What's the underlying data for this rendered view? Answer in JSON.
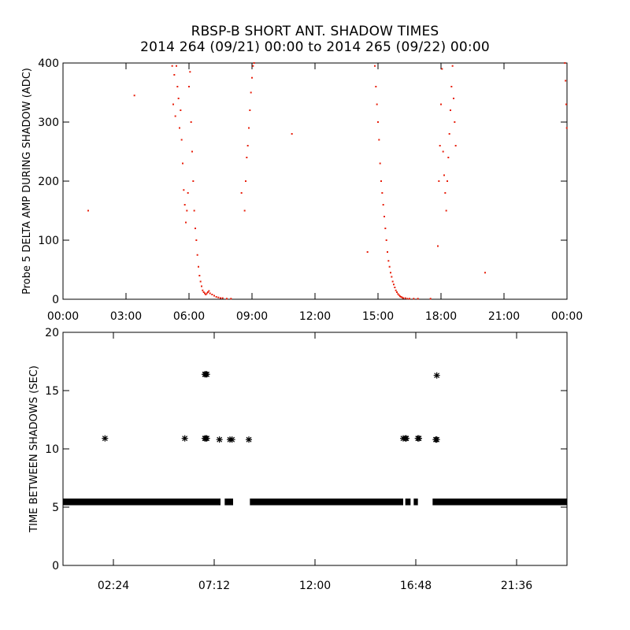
{
  "title": "RBSP-B SHORT ANT. SHADOW TIMES",
  "subtitle": "2014 264 (09/21) 00:00 to 2014 265 (09/22) 00:00",
  "colors": {
    "top_points": "#e8200c",
    "bottom_points": "#000000",
    "axes": "#000000"
  },
  "chart_data": [
    {
      "type": "scatter",
      "ylabel": "Probe 5 DELTA AMP DURING SHADOW (ADC)",
      "xlabel": "",
      "x_unit": "hours",
      "xlim": [
        0,
        24
      ],
      "ylim": [
        0,
        400
      ],
      "xticks": [
        0,
        3,
        6,
        9,
        12,
        15,
        18,
        21,
        24
      ],
      "xtick_labels": [
        "00:00",
        "03:00",
        "06:00",
        "09:00",
        "12:00",
        "15:00",
        "18:00",
        "21:00",
        "00:00"
      ],
      "yticks": [
        0,
        100,
        200,
        300,
        400
      ],
      "ytick_labels": [
        "0",
        "100",
        "200",
        "300",
        "400"
      ],
      "series": [
        {
          "style": "dots",
          "color": "#e8200c",
          "x": [
            1.2,
            3.4,
            5.2,
            5.25,
            5.3,
            5.35,
            5.4,
            5.45,
            5.5,
            5.55,
            5.6,
            5.65,
            5.7,
            5.75,
            5.8,
            5.85,
            5.9,
            5.95,
            6.0,
            6.05,
            6.1,
            6.15,
            6.2,
            6.25,
            6.3,
            6.35,
            6.4,
            6.45,
            6.5,
            6.55,
            6.6,
            6.65,
            6.7,
            6.75,
            6.8,
            6.85,
            6.9,
            6.95,
            7.0,
            7.1,
            7.2,
            7.3,
            7.4,
            7.5,
            7.6,
            7.8,
            8.0,
            8.5,
            8.65,
            8.7,
            8.75,
            8.8,
            8.85,
            8.9,
            8.95,
            9.0,
            9.05,
            9.1,
            10.9,
            14.5,
            14.85,
            14.9,
            14.95,
            15.0,
            15.05,
            15.1,
            15.15,
            15.2,
            15.25,
            15.3,
            15.35,
            15.4,
            15.45,
            15.5,
            15.55,
            15.6,
            15.65,
            15.7,
            15.75,
            15.8,
            15.85,
            15.9,
            15.95,
            16.0,
            16.05,
            16.1,
            16.15,
            16.2,
            16.3,
            16.4,
            16.5,
            16.7,
            16.9,
            17.5,
            17.85,
            17.9,
            17.95,
            18.0,
            18.05,
            18.1,
            18.15,
            18.2,
            18.25,
            18.3,
            18.35,
            18.4,
            18.45,
            18.5,
            18.55,
            18.6,
            18.65,
            18.7,
            20.1,
            23.9,
            23.93,
            23.96,
            23.99
          ],
          "y": [
            150,
            345,
            395,
            330,
            380,
            310,
            395,
            360,
            340,
            290,
            320,
            270,
            230,
            185,
            160,
            130,
            150,
            180,
            360,
            385,
            300,
            250,
            200,
            150,
            120,
            100,
            75,
            55,
            40,
            30,
            22,
            15,
            12,
            10,
            8,
            10,
            12,
            14,
            10,
            8,
            6,
            4,
            3,
            2,
            2,
            1,
            1,
            180,
            150,
            200,
            240,
            260,
            290,
            320,
            350,
            375,
            395,
            400,
            280,
            80,
            395,
            360,
            330,
            300,
            270,
            230,
            200,
            180,
            160,
            140,
            120,
            100,
            80,
            65,
            55,
            45,
            38,
            30,
            25,
            20,
            15,
            12,
            9,
            7,
            5,
            4,
            3,
            2,
            2,
            1,
            1,
            1,
            1,
            1,
            90,
            200,
            260,
            330,
            390,
            250,
            210,
            180,
            150,
            200,
            240,
            280,
            320,
            360,
            395,
            340,
            300,
            260,
            45,
            400,
            370,
            330,
            290
          ]
        }
      ]
    },
    {
      "type": "scatter",
      "ylabel": "TIME BETWEEN SHADOWS (SEC)",
      "xlabel": "",
      "x_unit": "hours",
      "xlim": [
        0,
        24
      ],
      "ylim": [
        0,
        20
      ],
      "xticks": [
        2.4,
        7.2,
        12.0,
        16.8,
        21.6
      ],
      "xtick_labels": [
        "02:24",
        "07:12",
        "12:00",
        "16:48",
        "21:36"
      ],
      "yticks": [
        0,
        5,
        10,
        15,
        20
      ],
      "ytick_labels": [
        "0",
        "5",
        "10",
        "15",
        "20"
      ],
      "series": [
        {
          "style": "asterisk",
          "color": "#000000",
          "band_y": [
            5.3,
            5.6
          ],
          "band_segments": [
            [
              0.0,
              7.5
            ],
            [
              7.7,
              8.1
            ],
            [
              8.9,
              16.2
            ],
            [
              16.3,
              16.55
            ],
            [
              16.7,
              16.9
            ],
            [
              17.6,
              24.0
            ]
          ],
          "x": [
            2.0,
            5.8,
            6.75,
            6.8,
            6.85,
            7.45,
            7.95,
            8.05,
            8.85,
            16.2,
            16.3,
            16.35,
            16.9,
            16.95,
            17.75,
            17.8,
            6.75,
            6.8,
            6.85,
            17.8
          ],
          "y": [
            10.9,
            10.9,
            10.9,
            10.9,
            10.9,
            10.8,
            10.8,
            10.8,
            10.8,
            10.9,
            10.9,
            10.9,
            10.9,
            10.9,
            10.8,
            10.8,
            16.4,
            16.4,
            16.4,
            16.3
          ]
        }
      ]
    }
  ]
}
